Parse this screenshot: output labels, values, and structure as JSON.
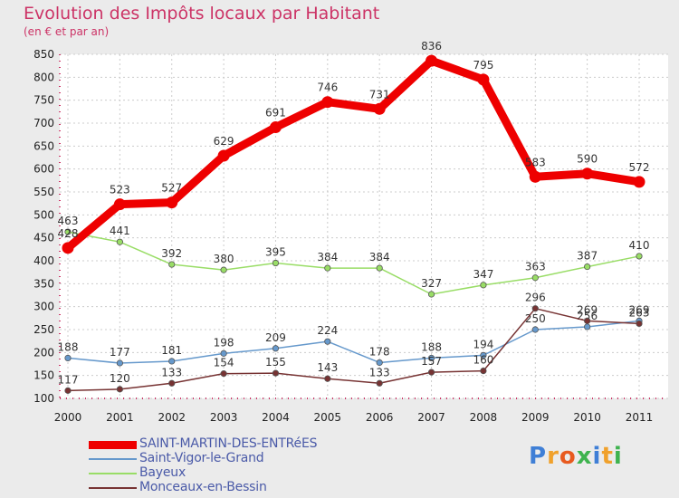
{
  "header": {
    "title": "Evolution des Impôts locaux par Habitant",
    "subtitle": "(en € et par an)"
  },
  "logo": {
    "text": "Proxiti",
    "colors": [
      "#3f7fd6",
      "#f0a12c",
      "#e85a1f",
      "#3fb34f",
      "#3f7fd6",
      "#f0a12c",
      "#3fb34f"
    ]
  },
  "chart_data": {
    "type": "line",
    "x": [
      2000,
      2001,
      2002,
      2003,
      2004,
      2005,
      2006,
      2007,
      2008,
      2009,
      2010,
      2011
    ],
    "ylim": [
      100,
      850
    ],
    "yticks": [
      100,
      150,
      200,
      250,
      300,
      350,
      400,
      450,
      500,
      550,
      600,
      650,
      700,
      750,
      800,
      850
    ],
    "grid": true,
    "legend_position": "bottom-left",
    "series": [
      {
        "name": "SAINT-MARTIN-DES-ENTRéES",
        "color": "#ee0000",
        "emphasis": true,
        "values": [
          428,
          523,
          527,
          629,
          691,
          746,
          731,
          836,
          795,
          583,
          590,
          572
        ]
      },
      {
        "name": "Saint-Vigor-le-Grand",
        "color": "#6699cc",
        "values": [
          188,
          177,
          181,
          198,
          209,
          224,
          178,
          188,
          194,
          250,
          256,
          269
        ]
      },
      {
        "name": "Bayeux",
        "color": "#99dd66",
        "values": [
          463,
          441,
          392,
          380,
          395,
          384,
          384,
          327,
          347,
          363,
          387,
          410
        ]
      },
      {
        "name": "Monceaux-en-Bessin",
        "color": "#773333",
        "values": [
          117,
          120,
          133,
          154,
          155,
          143,
          133,
          157,
          160,
          296,
          269,
          263
        ]
      }
    ]
  }
}
